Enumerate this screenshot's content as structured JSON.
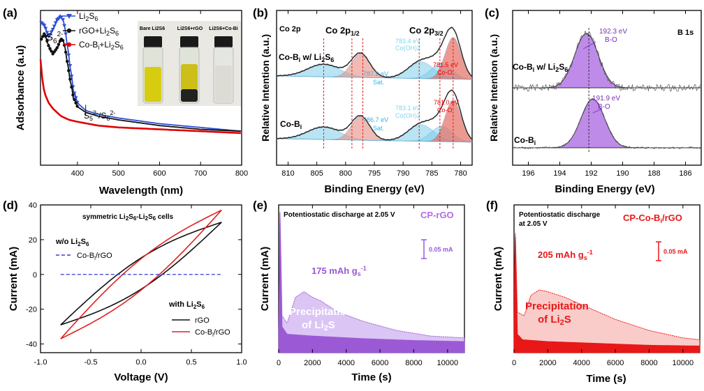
{
  "panels": {
    "a": {
      "label": "(a)"
    },
    "b": {
      "label": "(b)"
    },
    "c": {
      "label": "(c)"
    },
    "d": {
      "label": "(d)"
    },
    "e": {
      "label": "(e)"
    },
    "f": {
      "label": "(f)"
    }
  },
  "chart_data": [
    {
      "id": "a",
      "type": "line",
      "xlabel": "Wavelength (nm)",
      "ylabel": "Adsorbance (a.u)",
      "xlim": [
        310,
        800
      ],
      "xticks": [
        400,
        500,
        600,
        700,
        800
      ],
      "legend": [
        "Li2S6",
        "rGO+Li2S6",
        "Co-Bi+Li2S6"
      ],
      "annotations": {
        "peak": "S6 2-",
        "shoulder": "S5 2-/S6 2-"
      },
      "inset_labels": [
        "Bare Li2S6",
        "Li2S6+rGO",
        "Li2S6+Co-Bi"
      ],
      "series": [
        {
          "name": "Li2S6",
          "color": "#2d4fd6",
          "x": [
            310,
            320,
            330,
            340,
            350,
            360,
            365,
            370,
            380,
            390,
            400,
            420,
            450,
            500,
            600,
            700,
            800
          ],
          "y": [
            0.76,
            0.74,
            0.68,
            0.72,
            0.77,
            0.79,
            0.77,
            0.72,
            0.56,
            0.4,
            0.33,
            0.29,
            0.27,
            0.25,
            0.22,
            0.2,
            0.18
          ]
        },
        {
          "name": "rGO+Li2S6",
          "color": "#111111",
          "x": [
            310,
            320,
            330,
            340,
            350,
            360,
            365,
            370,
            380,
            390,
            400,
            420,
            450,
            500,
            600,
            700,
            800
          ],
          "y": [
            0.66,
            0.7,
            0.63,
            0.59,
            0.62,
            0.67,
            0.66,
            0.62,
            0.48,
            0.36,
            0.31,
            0.28,
            0.26,
            0.24,
            0.21,
            0.19,
            0.18
          ]
        },
        {
          "name": "Co-Bi+Li2S6",
          "color": "#e00000",
          "x": [
            310,
            315,
            320,
            330,
            340,
            350,
            360,
            380,
            400,
            450,
            500,
            600,
            700,
            800
          ],
          "y": [
            0.56,
            0.44,
            0.38,
            0.33,
            0.3,
            0.28,
            0.26,
            0.24,
            0.23,
            0.21,
            0.2,
            0.19,
            0.18,
            0.17
          ]
        }
      ]
    },
    {
      "id": "b",
      "type": "line",
      "title": "Co 2p",
      "xlabel": "Binding Energy (eV)",
      "ylabel": "Relative Intention (a.u.)",
      "xlim": [
        812,
        778
      ],
      "xticks": [
        810,
        805,
        800,
        795,
        790,
        785,
        780
      ],
      "header_labels": [
        "Co 2p1/2",
        "Co 2p3/2"
      ],
      "samples": [
        {
          "name": "Co-Bi w/ Li2S6",
          "peaks": [
            {
              "label": "781.5 eV",
              "sub": "Co-O"
            },
            {
              "label": "787.2 eV",
              "sub": "Sat."
            },
            {
              "label": "783.4 eV",
              "sub": "Co(OH)2"
            }
          ]
        },
        {
          "name": "Co-Bi",
          "peaks": [
            {
              "label": "781.0 eV",
              "sub": "Co-O"
            },
            {
              "label": "786.7 eV",
              "sub": "Sat."
            },
            {
              "label": "783.1 eV",
              "sub": "Co(OH)2"
            }
          ]
        }
      ]
    },
    {
      "id": "c",
      "type": "line",
      "title": "B 1s",
      "xlabel": "Binding Energy (eV)",
      "ylabel": "Relative Intention (a.u.)",
      "xlim": [
        197,
        185
      ],
      "xticks": [
        196,
        194,
        192,
        190,
        188,
        186
      ],
      "samples": [
        {
          "name": "Co-Bi w/ Li2S6",
          "peak": "192.3 eV",
          "sub": "B-O",
          "center": 192.3
        },
        {
          "name": "Co-Bi",
          "peak": "191.9 eV",
          "sub": "B-O",
          "center": 191.9
        }
      ]
    },
    {
      "id": "d",
      "type": "line",
      "title": "symmetric Li2S6-Li2S6 cells",
      "xlabel": "Voltage (V)",
      "ylabel": "Current (mA)",
      "xlim": [
        -1.0,
        1.0
      ],
      "ylim": [
        -45,
        40
      ],
      "xticks": [
        "-1.0",
        "-0.5",
        "0.0",
        "0.5",
        "1.0"
      ],
      "yticks": [
        "-40",
        "-20",
        "0",
        "20",
        "40"
      ],
      "legend_groups": [
        {
          "heading": "w/o Li2S6",
          "items": [
            {
              "name": "Co-Bi/rGO",
              "color": "#3a3ad0"
            }
          ]
        },
        {
          "heading": "with Li2S6",
          "items": [
            {
              "name": "rGO",
              "color": "#111111"
            },
            {
              "name": "Co-Bi/rGO",
              "color": "#e02020"
            }
          ]
        }
      ],
      "series": [
        {
          "name": "rGO",
          "color": "#111111",
          "loop": {
            "vmin": -0.8,
            "vmax": 0.8,
            "imin": -29,
            "imax": 30,
            "zero_upper": 0.17,
            "zero_lower": -0.15
          }
        },
        {
          "name": "Co-Bi/rGO",
          "color": "#e02020",
          "loop": {
            "vmin": -0.8,
            "vmax": 0.8,
            "imin": -37,
            "imax": 37,
            "zero_upper": 0.12,
            "zero_lower": -0.12
          }
        },
        {
          "name": "Co-Bi/rGO w/o Li2S6",
          "color": "#3a3ad0",
          "dashed": true,
          "y": 0
        }
      ]
    },
    {
      "id": "e",
      "type": "area",
      "title": "Potentiostatic discharge at 2.05 V",
      "tag": "CP-rGO",
      "capacity": "175 mAh g",
      "capacity_unit": "-1",
      "capacity_sub": "s",
      "area_label_1": "Precipitation",
      "area_label_2": "of Li2S",
      "scale_bar": "0.05 mA",
      "xlabel": "Time (s)",
      "ylabel": "Current (mA)",
      "xlim": [
        0,
        11000
      ],
      "xticks": [
        0,
        2000,
        4000,
        6000,
        8000,
        10000
      ],
      "color": "#9b59d6",
      "curve": [
        [
          0,
          0.02
        ],
        [
          80,
          0.38
        ],
        [
          200,
          0.1
        ],
        [
          500,
          0.08
        ],
        [
          1000,
          0.15
        ],
        [
          1500,
          0.165
        ],
        [
          2000,
          0.15
        ],
        [
          2500,
          0.14
        ],
        [
          3500,
          0.11
        ],
        [
          5000,
          0.085
        ],
        [
          7000,
          0.06
        ],
        [
          9000,
          0.045
        ],
        [
          11000,
          0.04
        ]
      ],
      "baseline": [
        [
          0,
          0.02
        ],
        [
          80,
          0.38
        ],
        [
          200,
          0.07
        ],
        [
          500,
          0.05
        ],
        [
          2000,
          0.045
        ],
        [
          5000,
          0.038
        ],
        [
          8000,
          0.033
        ],
        [
          11000,
          0.03
        ]
      ]
    },
    {
      "id": "f",
      "type": "area",
      "title": "Potentiostatic discharge",
      "title_line2": "at 2.05 V",
      "tag": "CP-Co-Bi/rGO",
      "capacity": "205 mAh g",
      "capacity_unit": "-1",
      "capacity_sub": "s",
      "area_label_1": "Precipitation",
      "area_label_2": "of Li2S",
      "scale_bar": "0.05 mA",
      "xlabel": "Time (s)",
      "ylabel": "Current (mA)",
      "xlim": [
        0,
        11000
      ],
      "xticks": [
        0,
        2000,
        4000,
        6000,
        8000,
        10000
      ],
      "color": "#e81818",
      "curve": [
        [
          0,
          0.02
        ],
        [
          60,
          0.36
        ],
        [
          200,
          0.11
        ],
        [
          600,
          0.1
        ],
        [
          1000,
          0.155
        ],
        [
          1500,
          0.17
        ],
        [
          2000,
          0.165
        ],
        [
          3000,
          0.15
        ],
        [
          4500,
          0.12
        ],
        [
          6000,
          0.09
        ],
        [
          8000,
          0.06
        ],
        [
          10000,
          0.04
        ],
        [
          11000,
          0.035
        ]
      ],
      "baseline": [
        [
          0,
          0.02
        ],
        [
          60,
          0.36
        ],
        [
          200,
          0.05
        ],
        [
          500,
          0.035
        ],
        [
          2000,
          0.03
        ],
        [
          5000,
          0.025
        ],
        [
          8000,
          0.02
        ],
        [
          11000,
          0.018
        ]
      ]
    }
  ]
}
